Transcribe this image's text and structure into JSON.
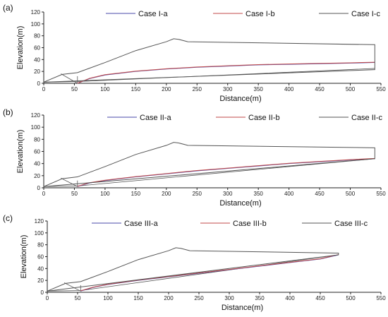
{
  "chart_data": [
    {
      "panel_label": "(a)",
      "type": "line",
      "xlabel": "Distance(m)",
      "ylabel": "Elevation(m)",
      "xlim": [
        0,
        550
      ],
      "ylim": [
        0,
        120
      ],
      "xticks": [
        0,
        50,
        100,
        150,
        200,
        250,
        300,
        350,
        400,
        450,
        500,
        550
      ],
      "yticks": [
        0,
        20,
        40,
        60,
        80,
        100,
        120
      ],
      "grid": false,
      "legend": "top",
      "series": [
        {
          "name": "Case I-a",
          "color": "#4a4aa8",
          "style": "solid",
          "x": [
            55,
            75,
            100,
            150,
            200,
            250,
            300,
            350,
            400,
            450,
            500,
            540
          ],
          "y": [
            0,
            8,
            14,
            20,
            24,
            27,
            29,
            31,
            32,
            33,
            34,
            35
          ]
        },
        {
          "name": "Case I-b",
          "color": "#c24a4a",
          "style": "solid",
          "x": [
            55,
            75,
            100,
            150,
            200,
            250,
            300,
            350,
            400,
            450,
            500,
            540
          ],
          "y": [
            0,
            8.5,
            14.5,
            20.5,
            24.5,
            27.5,
            29.5,
            31.5,
            32.5,
            33.5,
            34.5,
            35.5
          ]
        },
        {
          "name": "Case I-c",
          "color": "#555555",
          "style": "solid",
          "x": [
            0,
            30,
            55,
            100,
            150,
            200,
            212,
            220,
            235,
            540,
            540,
            0
          ],
          "y": [
            2,
            15,
            18,
            35,
            55,
            70,
            75,
            74,
            70,
            65,
            23,
            2
          ]
        }
      ],
      "extra_lines": [
        {
          "color": "#555555",
          "x": [
            0,
            55,
            540
          ],
          "y": [
            2,
            3,
            25
          ]
        },
        {
          "color": "#555555",
          "x": [
            28,
            55
          ],
          "y": [
            16,
            0
          ]
        },
        {
          "color": "#555555",
          "x": [
            55,
            55
          ],
          "y": [
            0,
            12
          ]
        }
      ]
    },
    {
      "panel_label": "(b)",
      "type": "line",
      "xlabel": "Distance(m)",
      "ylabel": "Elevation(m)",
      "xlim": [
        0,
        550
      ],
      "ylim": [
        0,
        120
      ],
      "xticks": [
        0,
        50,
        100,
        150,
        200,
        250,
        300,
        350,
        400,
        450,
        500,
        550
      ],
      "yticks": [
        0,
        20,
        40,
        60,
        80,
        100,
        120
      ],
      "grid": false,
      "legend": "top",
      "series": [
        {
          "name": "Case II-a",
          "color": "#4a4aa8",
          "style": "solid",
          "x": [
            55,
            75,
            100,
            150,
            200,
            250,
            300,
            350,
            400,
            450,
            500,
            540
          ],
          "y": [
            2,
            8,
            12,
            18,
            23,
            28,
            32,
            36,
            40,
            43,
            46,
            48
          ]
        },
        {
          "name": "Case II-b",
          "color": "#c24a4a",
          "style": "solid",
          "x": [
            55,
            75,
            100,
            150,
            200,
            250,
            300,
            350,
            400,
            450,
            500,
            540
          ],
          "y": [
            2.5,
            8.5,
            12.5,
            18.5,
            23.5,
            28.5,
            32.5,
            36.5,
            40.5,
            43.5,
            46.5,
            48.5
          ]
        },
        {
          "name": "Case II-c",
          "color": "#555555",
          "style": "solid",
          "x": [
            0,
            30,
            55,
            100,
            150,
            200,
            212,
            220,
            235,
            540,
            540,
            0
          ],
          "y": [
            2,
            15,
            18,
            35,
            55,
            70,
            75,
            74,
            70,
            66,
            48,
            2
          ]
        }
      ],
      "extra_lines": [
        {
          "color": "#555555",
          "x": [
            0,
            55,
            540
          ],
          "y": [
            2,
            3,
            48
          ]
        },
        {
          "color": "#555555",
          "x": [
            28,
            55
          ],
          "y": [
            16,
            2
          ]
        },
        {
          "color": "#555555",
          "x": [
            55,
            55
          ],
          "y": [
            2,
            12
          ]
        }
      ]
    },
    {
      "panel_label": "(c)",
      "type": "line",
      "xlabel": "Distance(m)",
      "ylabel": "Elevation(m)",
      "xlim": [
        0,
        550
      ],
      "ylim": [
        0,
        120
      ],
      "xticks": [
        0,
        50,
        100,
        150,
        200,
        250,
        300,
        350,
        400,
        450,
        500,
        550
      ],
      "yticks": [
        0,
        20,
        40,
        60,
        80,
        100,
        120
      ],
      "grid": false,
      "legend": "top",
      "series": [
        {
          "name": "Case III-a",
          "color": "#4a4aa8",
          "style": "solid",
          "x": [
            55,
            75,
            100,
            150,
            200,
            250,
            300,
            350,
            400,
            450,
            480
          ],
          "y": [
            2,
            8,
            13,
            20,
            26,
            32,
            38,
            44,
            50,
            56,
            63
          ]
        },
        {
          "name": "Case III-b",
          "color": "#c24a4a",
          "style": "solid",
          "x": [
            55,
            75,
            100,
            150,
            200,
            250,
            300,
            350,
            400,
            450,
            480
          ],
          "y": [
            2.5,
            8.5,
            13.5,
            20.5,
            26.5,
            32.5,
            38.5,
            44.5,
            50.5,
            56.5,
            63.5
          ]
        },
        {
          "name": "Case III-c",
          "color": "#555555",
          "style": "solid",
          "x": [
            0,
            30,
            55,
            100,
            150,
            200,
            212,
            220,
            235,
            480,
            480,
            0
          ],
          "y": [
            2,
            15,
            18,
            35,
            55,
            70,
            75,
            74,
            70,
            66,
            63,
            2
          ]
        }
      ],
      "extra_lines": [
        {
          "color": "#555555",
          "x": [
            0,
            55,
            480
          ],
          "y": [
            2,
            3,
            63
          ]
        },
        {
          "color": "#555555",
          "x": [
            28,
            55
          ],
          "y": [
            16,
            2
          ]
        },
        {
          "color": "#555555",
          "x": [
            55,
            55
          ],
          "y": [
            2,
            12
          ]
        }
      ]
    }
  ]
}
